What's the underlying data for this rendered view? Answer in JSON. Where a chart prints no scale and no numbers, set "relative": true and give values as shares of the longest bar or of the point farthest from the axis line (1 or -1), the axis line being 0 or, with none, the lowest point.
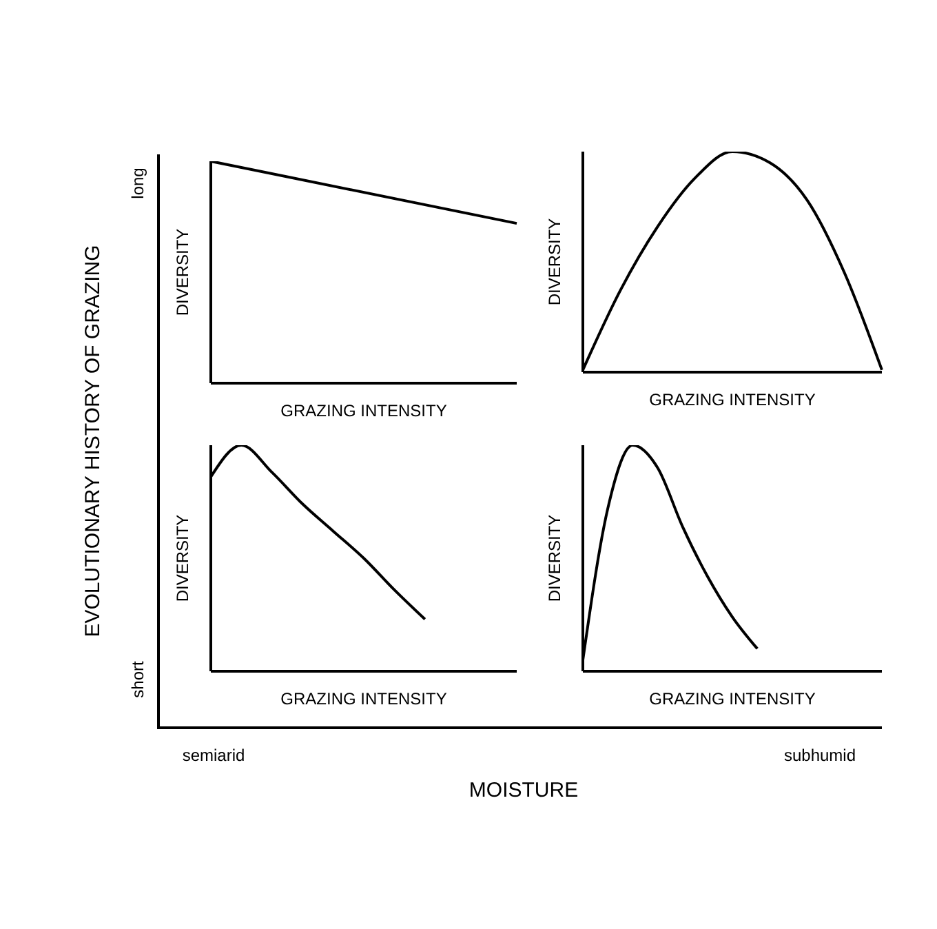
{
  "chart_data": [
    {
      "type": "line",
      "relative": true,
      "tick_labels": false,
      "xlabel": "GRAZING INTENSITY",
      "ylabel": "DIVERSITY",
      "categories": [
        null,
        null
      ],
      "series": [
        {
          "color": "#000000",
          "values": [
            1,
            0.72
          ]
        }
      ]
    },
    {
      "type": "line",
      "relative": true,
      "tick_labels": false,
      "xlabel": "GRAZING INTENSITY",
      "ylabel": "DIVERSITY",
      "categories": [
        null,
        null,
        null,
        null,
        null,
        null,
        null,
        null,
        null
      ],
      "series": [
        {
          "color": "#000000",
          "values": [
            0.01,
            0.37,
            0.66,
            0.88,
            1,
            0.95,
            0.78,
            0.45,
            0.01
          ]
        }
      ]
    },
    {
      "type": "line",
      "relative": true,
      "tick_labels": false,
      "xlabel": "GRAZING INTENSITY",
      "ylabel": "DIVERSITY",
      "categories": [
        null,
        null,
        null,
        null,
        null,
        null,
        null,
        null,
        null,
        null,
        null
      ],
      "series": [
        {
          "color": "#000000",
          "values": [
            0.86,
            1,
            0.88,
            0.74,
            0.62,
            0.5,
            0.36,
            0.23,
            null,
            null,
            null
          ]
        }
      ]
    },
    {
      "type": "line",
      "relative": true,
      "tick_labels": false,
      "xlabel": "GRAZING INTENSITY",
      "ylabel": "DIVERSITY",
      "categories": [
        null,
        null,
        null,
        null,
        null,
        null,
        null,
        null,
        null,
        null,
        null,
        null,
        null
      ],
      "series": [
        {
          "color": "#000000",
          "values": [
            0.05,
            0.72,
            1,
            0.9,
            0.64,
            0.42,
            0.24,
            0.1,
            null,
            null,
            null,
            null,
            null
          ]
        }
      ]
    },
    {
      "type": "other",
      "xlabel": "MOISTURE",
      "ylabel": "EVOLUTIONARY HISTORY OF GRAZING",
      "annotations": [
        "short",
        "long",
        "semiarid",
        "subhumid"
      ]
    }
  ]
}
